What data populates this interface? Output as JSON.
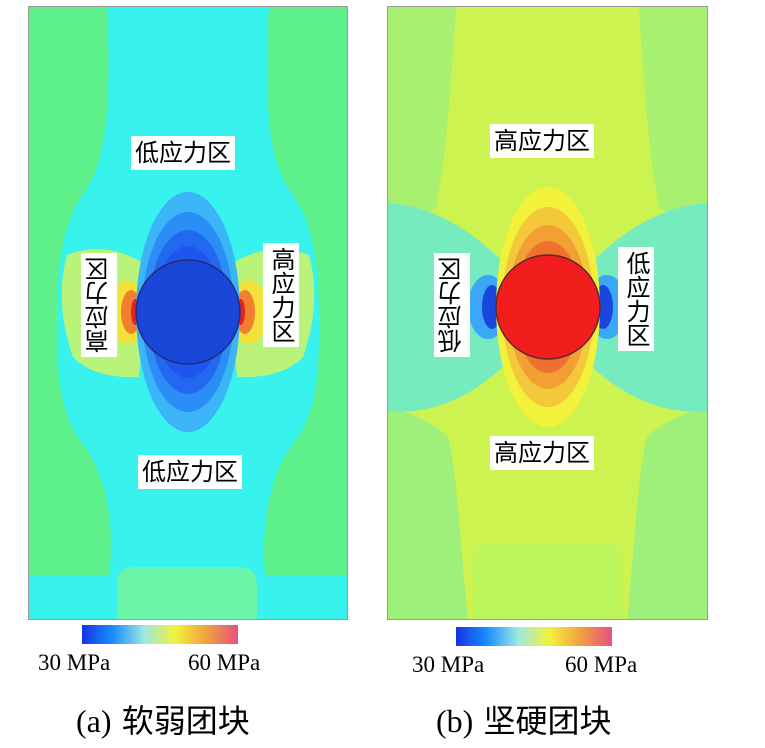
{
  "panels": {
    "soft": {
      "caption_index": "(a)",
      "caption_text": "软弱团块",
      "label_top": "低应力区",
      "label_bottom": "低应力区",
      "label_left": "高应力区",
      "label_right": "高应力区"
    },
    "hard": {
      "caption_index": "(b)",
      "caption_text": "坚硬团块",
      "label_top": "高应力区",
      "label_bottom": "高应力区",
      "label_left": "低应力区",
      "label_right": "低应力区"
    }
  },
  "colorbar": {
    "min_label": "30 MPa",
    "max_label": "60 MPa",
    "colors": [
      "#1533e6",
      "#1a8fff",
      "#9ee8e0",
      "#f2f23a",
      "#f0a040",
      "#e85080"
    ]
  },
  "colors": {
    "background_green": "#5ef08a",
    "cyan": "#38f2ee",
    "light_cyan": "#6af5e0",
    "yellow_green": "#cdf550",
    "yellow": "#f2f23a",
    "blue": "#1d55ee",
    "deep_blue": "#1a46d8",
    "red": "#f21e1e",
    "orange": "#f08030"
  }
}
